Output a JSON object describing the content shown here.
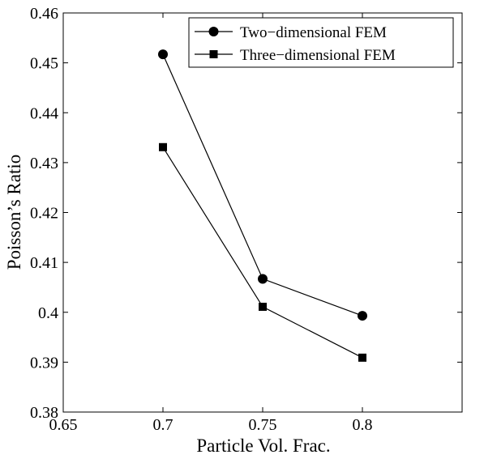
{
  "chart_data": {
    "type": "line",
    "title": "",
    "xlabel": "Particle Vol. Frac.",
    "ylabel": "Poisson’s Ratio",
    "xlim": [
      0.65,
      0.85
    ],
    "ylim": [
      0.38,
      0.46
    ],
    "xticks": [
      0.65,
      0.7,
      0.75,
      0.8
    ],
    "xtick_labels": [
      "0.65",
      "0.7",
      "0.75",
      "0.8"
    ],
    "yticks": [
      0.38,
      0.39,
      0.4,
      0.41,
      0.42,
      0.43,
      0.44,
      0.45,
      0.46
    ],
    "ytick_labels": [
      "0.38",
      "0.39",
      "0.4",
      "0.41",
      "0.42",
      "0.43",
      "0.44",
      "0.45",
      "0.46"
    ],
    "grid": false,
    "legend_position": "top-right",
    "series": [
      {
        "name": "Two−dimensional FEM",
        "marker": "circle",
        "color": "#000000",
        "x": [
          0.7,
          0.75,
          0.8
        ],
        "y": [
          0.4517,
          0.4067,
          0.3993
        ]
      },
      {
        "name": "Three−dimensional FEM",
        "marker": "square",
        "color": "#000000",
        "x": [
          0.7,
          0.75,
          0.8
        ],
        "y": [
          0.4331,
          0.4011,
          0.3909
        ]
      }
    ]
  }
}
